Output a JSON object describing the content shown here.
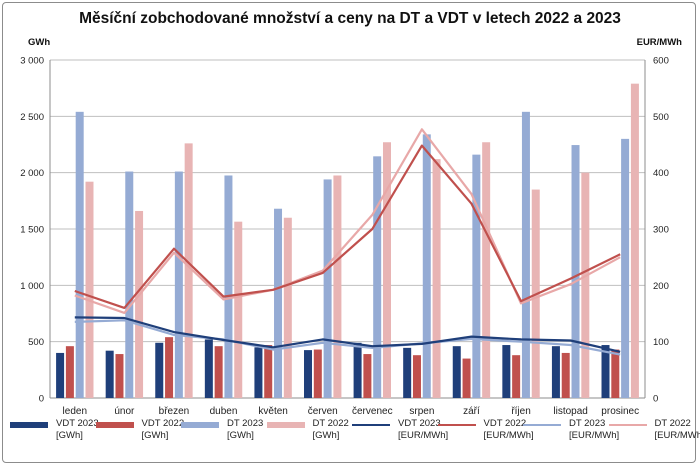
{
  "chart_data": {
    "type": "bar",
    "title": "Měsíční zobchodované množství a ceny na DT a VDT v letech 2022 a 2023",
    "ylabel": "GWh",
    "y2label": "EUR/MWh",
    "ylim": [
      0,
      3000
    ],
    "y2lim": [
      0,
      600
    ],
    "yticks": [
      "0",
      "500",
      "1 000",
      "1 500",
      "2 000",
      "2 500",
      "3 000"
    ],
    "y2ticks": [
      "0",
      "100",
      "200",
      "300",
      "400",
      "500",
      "600"
    ],
    "grid": true,
    "legend": "bottom",
    "categories": [
      "leden",
      "únor",
      "březen",
      "duben",
      "květen",
      "červen",
      "červenec",
      "srpen",
      "září",
      "říjen",
      "listopad",
      "prosinec"
    ],
    "series": [
      {
        "name": "VDT 2023",
        "unit": "[GWh]",
        "kind": "bar",
        "axis": "left",
        "color": "#1f3f7a",
        "values": [
          400,
          420,
          490,
          520,
          450,
          425,
          490,
          445,
          460,
          470,
          460,
          470
        ]
      },
      {
        "name": "VDT 2022",
        "unit": "[GWh]",
        "kind": "bar",
        "axis": "left",
        "color": "#c0504d",
        "values": [
          460,
          390,
          540,
          460,
          470,
          430,
          390,
          380,
          350,
          380,
          400,
          430
        ]
      },
      {
        "name": "DT 2023",
        "unit": "[GWh]",
        "kind": "bar",
        "axis": "left",
        "color": "#95abd4",
        "values": [
          2540,
          2010,
          2010,
          1975,
          1680,
          1940,
          2145,
          2340,
          2160,
          2540,
          2245,
          2300
        ]
      },
      {
        "name": "DT 2022",
        "unit": "[GWh]",
        "kind": "bar",
        "axis": "left",
        "color": "#e8b4b4",
        "values": [
          1920,
          1660,
          2260,
          1565,
          1600,
          1975,
          2270,
          2120,
          2270,
          1850,
          2000,
          2790
        ]
      },
      {
        "name": "VDT 2023",
        "unit": "[EUR/MWh]",
        "kind": "line",
        "axis": "right",
        "color": "#1f3f7a",
        "values": [
          143,
          142,
          117,
          103,
          90,
          104,
          92,
          96,
          109,
          104,
          102,
          82
        ]
      },
      {
        "name": "VDT 2022",
        "unit": "[EUR/MWh]",
        "kind": "line",
        "axis": "right",
        "color": "#c0504d",
        "values": [
          190,
          160,
          265,
          180,
          192,
          222,
          300,
          448,
          345,
          172,
          212,
          255
        ]
      },
      {
        "name": "DT 2023",
        "unit": "[EUR/MWh]",
        "kind": "line",
        "axis": "right",
        "color": "#95abd4",
        "values": [
          135,
          138,
          112,
          104,
          86,
          98,
          89,
          97,
          105,
          100,
          94,
          77
        ]
      },
      {
        "name": "DT 2022",
        "unit": "[EUR/MWh]",
        "kind": "line",
        "axis": "right",
        "color": "#e8a8a8",
        "values": [
          182,
          151,
          258,
          175,
          192,
          226,
          325,
          477,
          362,
          168,
          202,
          250
        ]
      }
    ]
  }
}
